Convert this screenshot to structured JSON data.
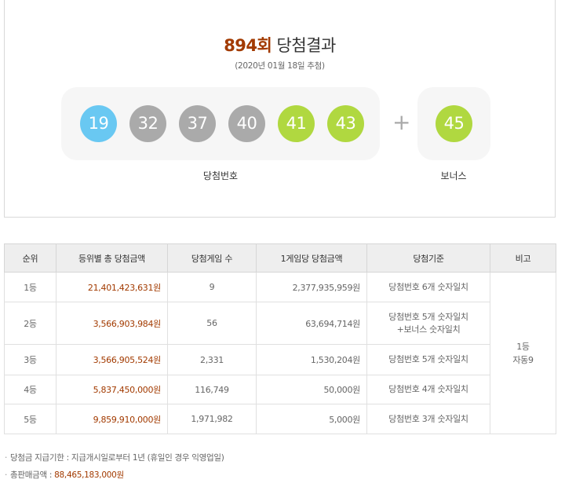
{
  "header": {
    "round": "894회",
    "title": "당첨결과",
    "draw_date": "(2020년 01월 18일 추첨)"
  },
  "winning_numbers": [
    {
      "number": "19",
      "color": "#69c8f2"
    },
    {
      "number": "32",
      "color": "#aaaaaa"
    },
    {
      "number": "37",
      "color": "#aaaaaa"
    },
    {
      "number": "40",
      "color": "#aaaaaa"
    },
    {
      "number": "41",
      "color": "#b0d840"
    },
    {
      "number": "43",
      "color": "#b0d840"
    }
  ],
  "plus": "+",
  "bonus": {
    "number": "45",
    "color": "#b0d840"
  },
  "labels": {
    "winning": "당첨번호",
    "bonus": "보너스"
  },
  "table": {
    "headers": [
      "순위",
      "등위별 총 당첨금액",
      "당첨게임 수",
      "1게임당 당첨금액",
      "당첨기준",
      "비고"
    ],
    "rows": [
      {
        "rank": "1등",
        "total": "21,401,423,631원",
        "games": "9",
        "per_game": "2,377,935,959원",
        "criteria": [
          "당첨번호 6개 숫자일치"
        ]
      },
      {
        "rank": "2등",
        "total": "3,566,903,984원",
        "games": "56",
        "per_game": "63,694,714원",
        "criteria": [
          "당첨번호 5개 숫자일치",
          "+보너스 숫자일치"
        ]
      },
      {
        "rank": "3등",
        "total": "3,566,905,524원",
        "games": "2,331",
        "per_game": "1,530,204원",
        "criteria": [
          "당첨번호 5개 숫자일치"
        ]
      },
      {
        "rank": "4등",
        "total": "5,837,450,000원",
        "games": "116,749",
        "per_game": "50,000원",
        "criteria": [
          "당첨번호 4개 숫자일치"
        ]
      },
      {
        "rank": "5등",
        "total": "9,859,910,000원",
        "games": "1,971,982",
        "per_game": "5,000원",
        "criteria": [
          "당첨번호 3개 숫자일치"
        ]
      }
    ],
    "note": [
      "1등",
      "자동9"
    ]
  },
  "footnotes": {
    "bullet": "·",
    "deadline_label": "당첨금 지급기한 : 지급개시일로부터 1년 (휴일인 경우 익영업일)",
    "total_sales_label": "총판매금액 : ",
    "total_sales_value": "88,465,183,000원"
  }
}
